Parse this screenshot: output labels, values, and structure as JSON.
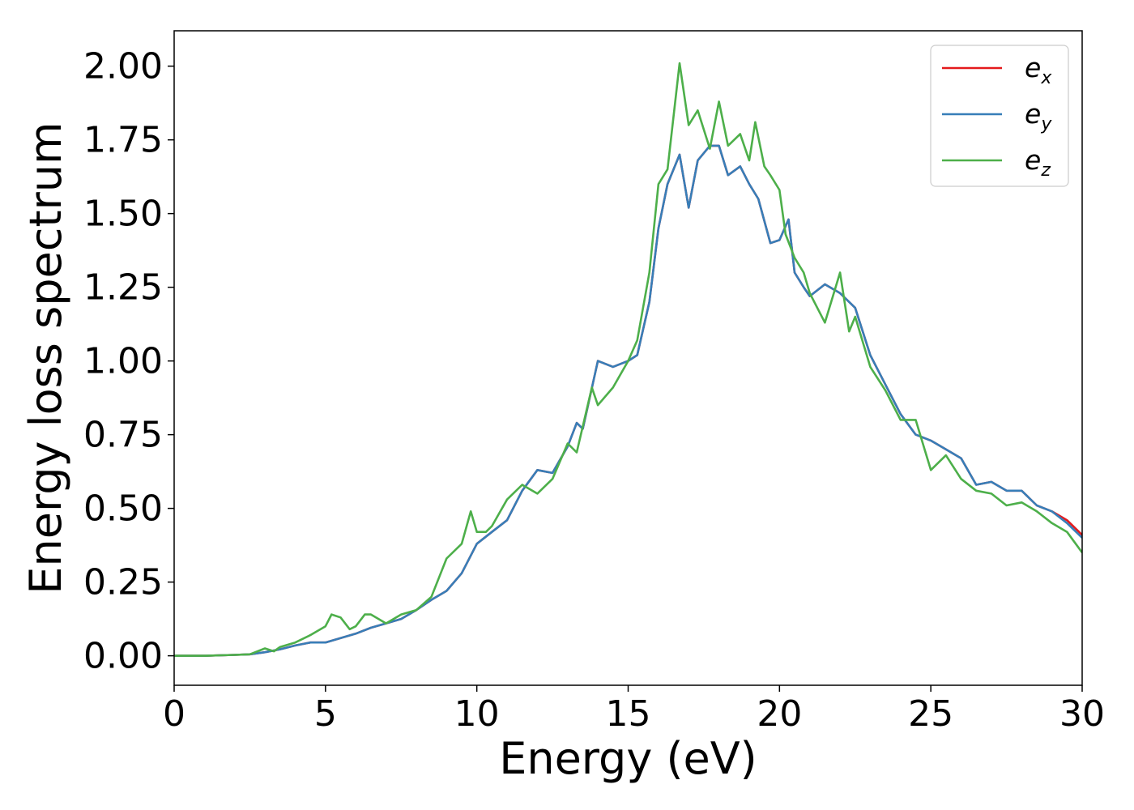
{
  "chart_data": {
    "type": "line",
    "title": "",
    "xlabel": "Energy (eV)",
    "ylabel": "Energy loss spectrum",
    "xlim": [
      0,
      30
    ],
    "ylim": [
      -0.1,
      2.12
    ],
    "xticks": [
      "0",
      "5",
      "10",
      "15",
      "20",
      "25",
      "30"
    ],
    "yticks": [
      "0.00",
      "0.25",
      "0.50",
      "0.75",
      "1.00",
      "1.25",
      "1.50",
      "1.75",
      "2.00"
    ],
    "grid": false,
    "legend_position": "top-right",
    "series": [
      {
        "name": "e_x",
        "legend_base": "e",
        "legend_sub": "x",
        "color": "#e41a1c",
        "points": [
          [
            0,
            0
          ],
          [
            1,
            0
          ],
          [
            2,
            0.003
          ],
          [
            2.5,
            0.005
          ],
          [
            3,
            0.012
          ],
          [
            3.5,
            0.022
          ],
          [
            4,
            0.035
          ],
          [
            4.5,
            0.045
          ],
          [
            5,
            0.045
          ],
          [
            5.5,
            0.06
          ],
          [
            6,
            0.075
          ],
          [
            6.5,
            0.095
          ],
          [
            7,
            0.11
          ],
          [
            7.5,
            0.125
          ],
          [
            8,
            0.155
          ],
          [
            8.5,
            0.19
          ],
          [
            9,
            0.22
          ],
          [
            9.5,
            0.28
          ],
          [
            10,
            0.38
          ],
          [
            10.5,
            0.42
          ],
          [
            11,
            0.46
          ],
          [
            11.5,
            0.56
          ],
          [
            12,
            0.63
          ],
          [
            12.5,
            0.62
          ],
          [
            13,
            0.71
          ],
          [
            13.3,
            0.79
          ],
          [
            13.5,
            0.77
          ],
          [
            14,
            1.0
          ],
          [
            14.5,
            0.98
          ],
          [
            15,
            1.0
          ],
          [
            15.3,
            1.02
          ],
          [
            15.7,
            1.2
          ],
          [
            16,
            1.45
          ],
          [
            16.3,
            1.6
          ],
          [
            16.7,
            1.7
          ],
          [
            17,
            1.52
          ],
          [
            17.3,
            1.68
          ],
          [
            17.7,
            1.73
          ],
          [
            18,
            1.73
          ],
          [
            18.3,
            1.63
          ],
          [
            18.7,
            1.66
          ],
          [
            19,
            1.6
          ],
          [
            19.3,
            1.55
          ],
          [
            19.7,
            1.4
          ],
          [
            20,
            1.41
          ],
          [
            20.3,
            1.48
          ],
          [
            20.5,
            1.3
          ],
          [
            20.8,
            1.25
          ],
          [
            21,
            1.22
          ],
          [
            21.5,
            1.26
          ],
          [
            22,
            1.23
          ],
          [
            22.5,
            1.18
          ],
          [
            23,
            1.02
          ],
          [
            23.5,
            0.92
          ],
          [
            24,
            0.82
          ],
          [
            24.5,
            0.75
          ],
          [
            25,
            0.73
          ],
          [
            25.5,
            0.7
          ],
          [
            26,
            0.67
          ],
          [
            26.5,
            0.58
          ],
          [
            27,
            0.59
          ],
          [
            27.5,
            0.56
          ],
          [
            28,
            0.56
          ],
          [
            28.5,
            0.51
          ],
          [
            29,
            0.49
          ],
          [
            29.5,
            0.46
          ],
          [
            30,
            0.41
          ]
        ]
      },
      {
        "name": "e_y",
        "legend_base": "e",
        "legend_sub": "y",
        "color": "#377eb8",
        "points": [
          [
            0,
            0
          ],
          [
            1,
            0
          ],
          [
            2,
            0.003
          ],
          [
            2.5,
            0.005
          ],
          [
            3,
            0.012
          ],
          [
            3.5,
            0.022
          ],
          [
            4,
            0.035
          ],
          [
            4.5,
            0.045
          ],
          [
            5,
            0.045
          ],
          [
            5.5,
            0.06
          ],
          [
            6,
            0.075
          ],
          [
            6.5,
            0.095
          ],
          [
            7,
            0.11
          ],
          [
            7.5,
            0.125
          ],
          [
            8,
            0.155
          ],
          [
            8.5,
            0.19
          ],
          [
            9,
            0.22
          ],
          [
            9.5,
            0.28
          ],
          [
            10,
            0.38
          ],
          [
            10.5,
            0.42
          ],
          [
            11,
            0.46
          ],
          [
            11.5,
            0.56
          ],
          [
            12,
            0.63
          ],
          [
            12.5,
            0.62
          ],
          [
            13,
            0.71
          ],
          [
            13.3,
            0.79
          ],
          [
            13.5,
            0.77
          ],
          [
            14,
            1.0
          ],
          [
            14.5,
            0.98
          ],
          [
            15,
            1.0
          ],
          [
            15.3,
            1.02
          ],
          [
            15.7,
            1.2
          ],
          [
            16,
            1.45
          ],
          [
            16.3,
            1.6
          ],
          [
            16.7,
            1.7
          ],
          [
            17,
            1.52
          ],
          [
            17.3,
            1.68
          ],
          [
            17.7,
            1.73
          ],
          [
            18,
            1.73
          ],
          [
            18.3,
            1.63
          ],
          [
            18.7,
            1.66
          ],
          [
            19,
            1.6
          ],
          [
            19.3,
            1.55
          ],
          [
            19.7,
            1.4
          ],
          [
            20,
            1.41
          ],
          [
            20.3,
            1.48
          ],
          [
            20.5,
            1.3
          ],
          [
            20.8,
            1.25
          ],
          [
            21,
            1.22
          ],
          [
            21.5,
            1.26
          ],
          [
            22,
            1.23
          ],
          [
            22.5,
            1.18
          ],
          [
            23,
            1.02
          ],
          [
            23.5,
            0.92
          ],
          [
            24,
            0.82
          ],
          [
            24.5,
            0.75
          ],
          [
            25,
            0.73
          ],
          [
            25.5,
            0.7
          ],
          [
            26,
            0.67
          ],
          [
            26.5,
            0.58
          ],
          [
            27,
            0.59
          ],
          [
            27.5,
            0.56
          ],
          [
            28,
            0.56
          ],
          [
            28.5,
            0.51
          ],
          [
            29,
            0.49
          ],
          [
            29.5,
            0.45
          ],
          [
            30,
            0.4
          ]
        ]
      },
      {
        "name": "e_z",
        "legend_base": "e",
        "legend_sub": "z",
        "color": "#4daf4a",
        "points": [
          [
            0,
            0
          ],
          [
            1,
            0
          ],
          [
            2,
            0.003
          ],
          [
            2.5,
            0.005
          ],
          [
            3,
            0.025
          ],
          [
            3.3,
            0.015
          ],
          [
            3.5,
            0.03
          ],
          [
            4,
            0.045
          ],
          [
            4.5,
            0.07
          ],
          [
            5,
            0.1
          ],
          [
            5.2,
            0.14
          ],
          [
            5.5,
            0.13
          ],
          [
            5.8,
            0.09
          ],
          [
            6,
            0.1
          ],
          [
            6.3,
            0.14
          ],
          [
            6.5,
            0.14
          ],
          [
            7,
            0.11
          ],
          [
            7.5,
            0.14
          ],
          [
            8,
            0.155
          ],
          [
            8.5,
            0.2
          ],
          [
            9,
            0.33
          ],
          [
            9.5,
            0.38
          ],
          [
            9.8,
            0.49
          ],
          [
            10,
            0.42
          ],
          [
            10.3,
            0.42
          ],
          [
            10.5,
            0.44
          ],
          [
            11,
            0.53
          ],
          [
            11.5,
            0.58
          ],
          [
            12,
            0.55
          ],
          [
            12.5,
            0.6
          ],
          [
            13,
            0.72
          ],
          [
            13.3,
            0.69
          ],
          [
            13.8,
            0.91
          ],
          [
            14,
            0.85
          ],
          [
            14.5,
            0.91
          ],
          [
            15,
            1.0
          ],
          [
            15.3,
            1.07
          ],
          [
            15.7,
            1.3
          ],
          [
            16,
            1.6
          ],
          [
            16.3,
            1.65
          ],
          [
            16.7,
            2.01
          ],
          [
            17,
            1.8
          ],
          [
            17.3,
            1.85
          ],
          [
            17.7,
            1.72
          ],
          [
            18,
            1.88
          ],
          [
            18.3,
            1.73
          ],
          [
            18.7,
            1.77
          ],
          [
            19,
            1.68
          ],
          [
            19.2,
            1.81
          ],
          [
            19.5,
            1.66
          ],
          [
            19.7,
            1.63
          ],
          [
            20,
            1.58
          ],
          [
            20.2,
            1.43
          ],
          [
            20.5,
            1.35
          ],
          [
            20.8,
            1.3
          ],
          [
            21,
            1.23
          ],
          [
            21.5,
            1.13
          ],
          [
            22,
            1.3
          ],
          [
            22.3,
            1.1
          ],
          [
            22.5,
            1.15
          ],
          [
            23,
            0.98
          ],
          [
            23.5,
            0.9
          ],
          [
            24,
            0.8
          ],
          [
            24.5,
            0.8
          ],
          [
            25,
            0.63
          ],
          [
            25.5,
            0.68
          ],
          [
            26,
            0.6
          ],
          [
            26.5,
            0.56
          ],
          [
            27,
            0.55
          ],
          [
            27.5,
            0.51
          ],
          [
            28,
            0.52
          ],
          [
            28.5,
            0.49
          ],
          [
            29,
            0.45
          ],
          [
            29.5,
            0.42
          ],
          [
            30,
            0.35
          ]
        ]
      }
    ]
  }
}
